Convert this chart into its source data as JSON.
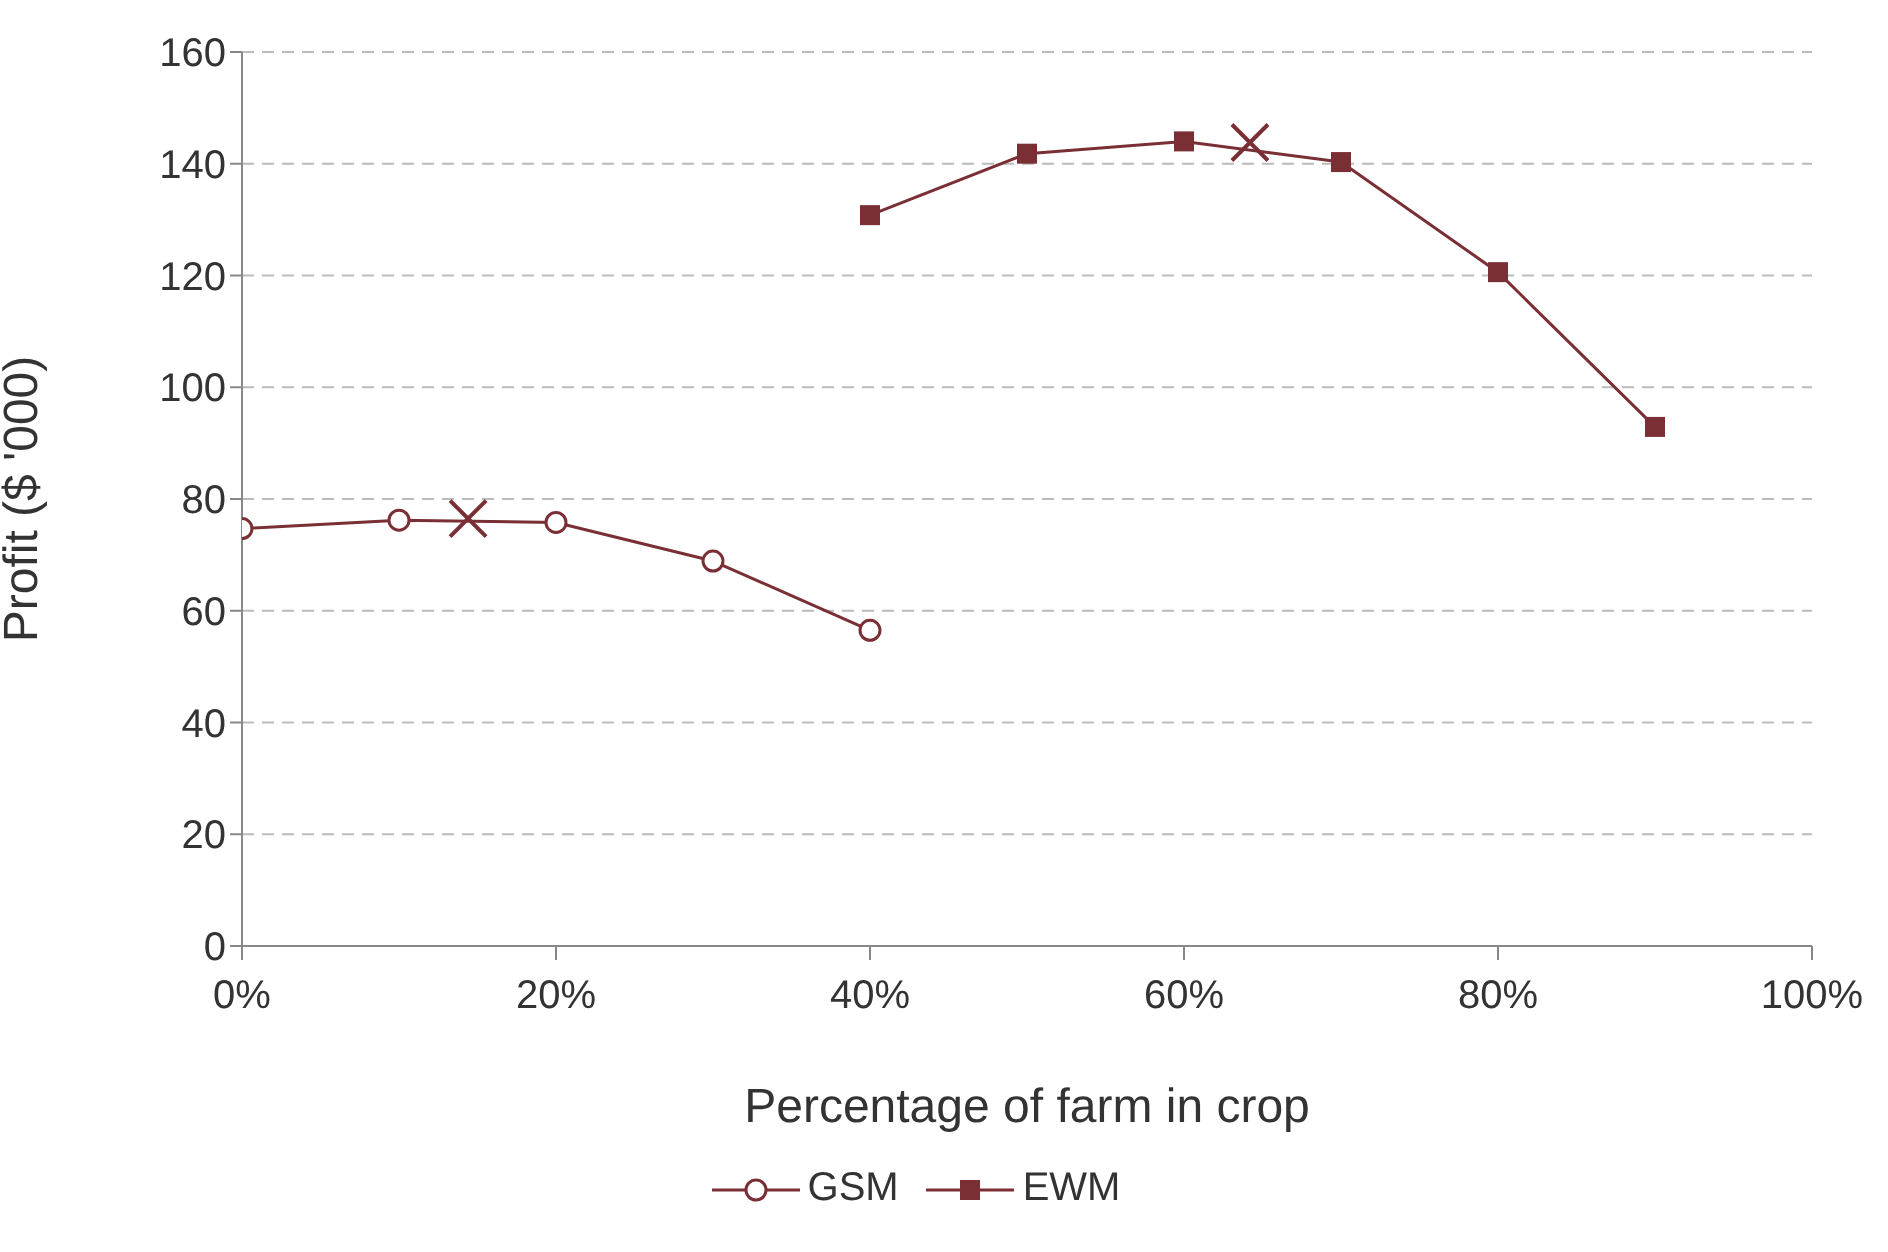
{
  "chart_data": {
    "type": "line",
    "xlabel": "Percentage of farm in crop",
    "ylabel": "Profit ($ '000)",
    "xlim": [
      0,
      100
    ],
    "xticks": [
      {
        "value": 0,
        "label": "0%"
      },
      {
        "value": 20,
        "label": "20%"
      },
      {
        "value": 40,
        "label": "40%"
      },
      {
        "value": 60,
        "label": "60%"
      },
      {
        "value": 80,
        "label": "80%"
      },
      {
        "value": 100,
        "label": "100%"
      }
    ],
    "ylim": [
      0,
      160
    ],
    "yticks": [
      0,
      20,
      40,
      60,
      80,
      100,
      120,
      140,
      160
    ],
    "grid": "y",
    "legend": "bottom",
    "line_style": "solid",
    "series": [
      {
        "name": "GSM",
        "color": "#7a2f35",
        "marker": "circle",
        "x": [
          0,
          10,
          20,
          30,
          40
        ],
        "values": [
          74.7,
          76.2,
          75.8,
          68.9,
          56.5
        ]
      },
      {
        "name": "EWM",
        "color": "#7a2f35",
        "marker": "square",
        "x": [
          40,
          50,
          60,
          70,
          80,
          90
        ],
        "values": [
          130.8,
          141.8,
          144,
          140.3,
          120.6,
          92.9
        ]
      },
      {
        "type": "scatter",
        "color": "#7a2f35",
        "marker": "cross",
        "x": [
          14.4,
          64.2
        ],
        "values": [
          76.5,
          143.8
        ]
      }
    ]
  }
}
